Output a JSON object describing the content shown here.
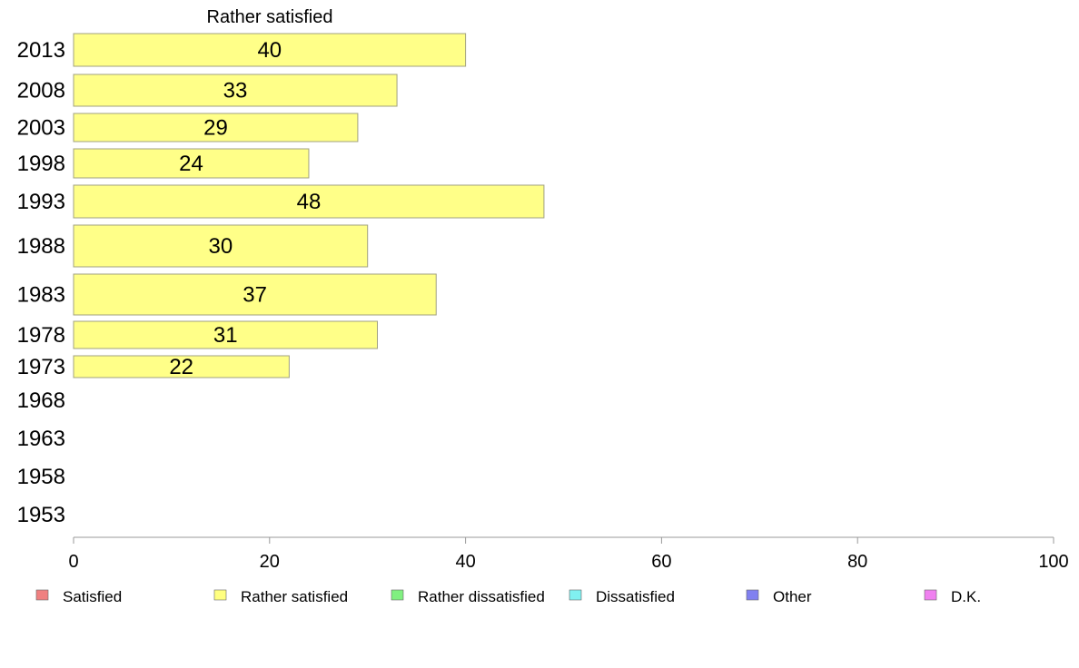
{
  "chart_data": {
    "type": "bar",
    "orientation": "horizontal",
    "title": "Rather satisfied",
    "categories": [
      "2013",
      "2008",
      "2003",
      "1998",
      "1993",
      "1988",
      "1983",
      "1978",
      "1973",
      "1968",
      "1963",
      "1958",
      "1953"
    ],
    "values": [
      40,
      33,
      29,
      24,
      48,
      30,
      37,
      31,
      22,
      null,
      null,
      null,
      null
    ],
    "value_labels": [
      "40",
      "33",
      "29",
      "24",
      "48",
      "30",
      "37",
      "31",
      "22",
      "",
      "",
      "",
      ""
    ],
    "xlim": [
      0,
      100
    ],
    "xticks": [
      "0",
      "20",
      "40",
      "60",
      "80",
      "100"
    ],
    "bar_color": "#ffff88",
    "bar_stroke": "#a0a080",
    "grid": false,
    "legend_position": "bottom",
    "legend": [
      {
        "label": "Satisfied",
        "color": "#f08080"
      },
      {
        "label": "Rather satisfied",
        "color": "#ffff80"
      },
      {
        "label": "Rather dissatisfied",
        "color": "#80f080"
      },
      {
        "label": "Dissatisfied",
        "color": "#80f0f0"
      },
      {
        "label": "Other",
        "color": "#8080f0"
      },
      {
        "label": "D.K.",
        "color": "#f080f0"
      }
    ]
  }
}
